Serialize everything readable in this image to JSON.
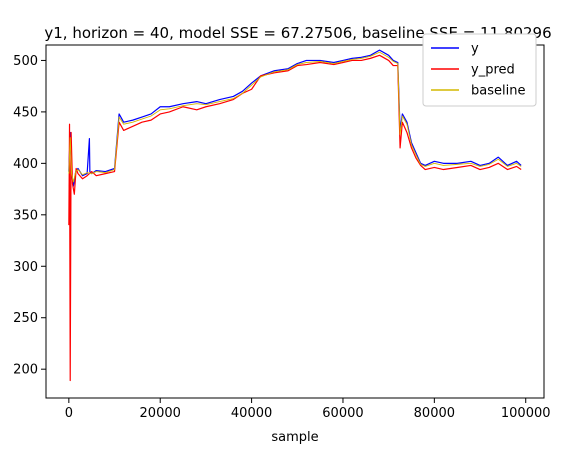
{
  "chart_data": {
    "type": "line",
    "title": "y1, horizon = 40, model SSE = 67.27506, baseline SSE = 11.80296",
    "xlabel": "sample",
    "ylabel": "",
    "xlim": [
      -5000,
      104000
    ],
    "ylim": [
      172,
      515
    ],
    "xticks": [
      0,
      20000,
      40000,
      60000,
      80000,
      100000
    ],
    "xtick_labels": [
      "0",
      "20000",
      "40000",
      "60000",
      "80000",
      "100000"
    ],
    "yticks": [
      200,
      250,
      300,
      350,
      400,
      450,
      500
    ],
    "ytick_labels": [
      "200",
      "250",
      "300",
      "350",
      "400",
      "450",
      "500"
    ],
    "grid": false,
    "legend_position": "top-right",
    "series": [
      {
        "name": "y",
        "color": "#0000ff",
        "x": [
          0,
          300,
          600,
          1000,
          1500,
          2000,
          3000,
          4000,
          4500,
          4600,
          5000,
          6000,
          8000,
          10000,
          11000,
          12000,
          14000,
          16000,
          18000,
          20000,
          22000,
          25000,
          28000,
          30000,
          33000,
          36000,
          38000,
          40000,
          42000,
          45000,
          48000,
          50000,
          52000,
          55000,
          58000,
          60000,
          62000,
          64000,
          66000,
          68000,
          70000,
          71000,
          72000,
          72500,
          73000,
          74000,
          75000,
          76000,
          77000,
          78000,
          80000,
          82000,
          85000,
          88000,
          90000,
          92000,
          94000,
          96000,
          98000,
          99000
        ],
        "y": [
          392,
          430,
          390,
          378,
          392,
          395,
          388,
          390,
          424,
          392,
          390,
          393,
          392,
          395,
          448,
          440,
          442,
          445,
          448,
          455,
          455,
          458,
          460,
          458,
          462,
          465,
          470,
          478,
          485,
          490,
          492,
          497,
          500,
          500,
          498,
          500,
          502,
          503,
          505,
          510,
          505,
          500,
          498,
          432,
          448,
          440,
          420,
          410,
          400,
          398,
          402,
          400,
          400,
          402,
          398,
          400,
          406,
          398,
          402,
          398
        ]
      },
      {
        "name": "y_pred",
        "color": "#ff0000",
        "x": [
          0,
          150,
          300,
          500,
          800,
          1200,
          1600,
          2000,
          3000,
          4000,
          5000,
          6000,
          8000,
          10000,
          11000,
          12000,
          14000,
          16000,
          18000,
          20000,
          22000,
          25000,
          28000,
          30000,
          33000,
          36000,
          38000,
          40000,
          42000,
          45000,
          48000,
          50000,
          52000,
          55000,
          58000,
          60000,
          62000,
          64000,
          66000,
          68000,
          70000,
          71000,
          72000,
          72500,
          73000,
          74000,
          75000,
          76000,
          77000,
          78000,
          80000,
          82000,
          85000,
          88000,
          90000,
          92000,
          94000,
          96000,
          98000,
          99000
        ],
        "y": [
          340,
          438,
          189,
          430,
          380,
          370,
          395,
          390,
          385,
          388,
          392,
          388,
          390,
          392,
          440,
          432,
          436,
          440,
          442,
          448,
          450,
          455,
          452,
          455,
          458,
          462,
          468,
          472,
          485,
          488,
          490,
          495,
          496,
          498,
          496,
          498,
          500,
          500,
          502,
          505,
          500,
          495,
          495,
          415,
          440,
          430,
          415,
          405,
          398,
          394,
          396,
          394,
          396,
          398,
          394,
          396,
          400,
          394,
          397,
          394
        ]
      },
      {
        "name": "baseline",
        "color": "#d4b800",
        "x": [
          0,
          300,
          600,
          1000,
          1500,
          2000,
          3000,
          4000,
          5000,
          6000,
          8000,
          10000,
          11000,
          12000,
          14000,
          16000,
          18000,
          20000,
          22000,
          25000,
          28000,
          30000,
          33000,
          36000,
          38000,
          40000,
          42000,
          45000,
          48000,
          50000,
          52000,
          55000,
          58000,
          60000,
          62000,
          64000,
          66000,
          68000,
          70000,
          71000,
          72000,
          72500,
          73000,
          74000,
          75000,
          76000,
          77000,
          78000,
          80000,
          82000,
          85000,
          88000,
          90000,
          92000,
          94000,
          96000,
          98000,
          99000
        ],
        "y": [
          390,
          425,
          390,
          382,
          392,
          394,
          389,
          391,
          390,
          392,
          391,
          394,
          445,
          438,
          440,
          443,
          446,
          452,
          453,
          456,
          458,
          457,
          460,
          463,
          468,
          476,
          484,
          489,
          491,
          496,
          498,
          499,
          497,
          499,
          501,
          502,
          504,
          508,
          503,
          499,
          497,
          428,
          446,
          438,
          418,
          408,
          399,
          397,
          400,
          398,
          399,
          400,
          397,
          399,
          404,
          397,
          400,
          397
        ]
      }
    ]
  }
}
